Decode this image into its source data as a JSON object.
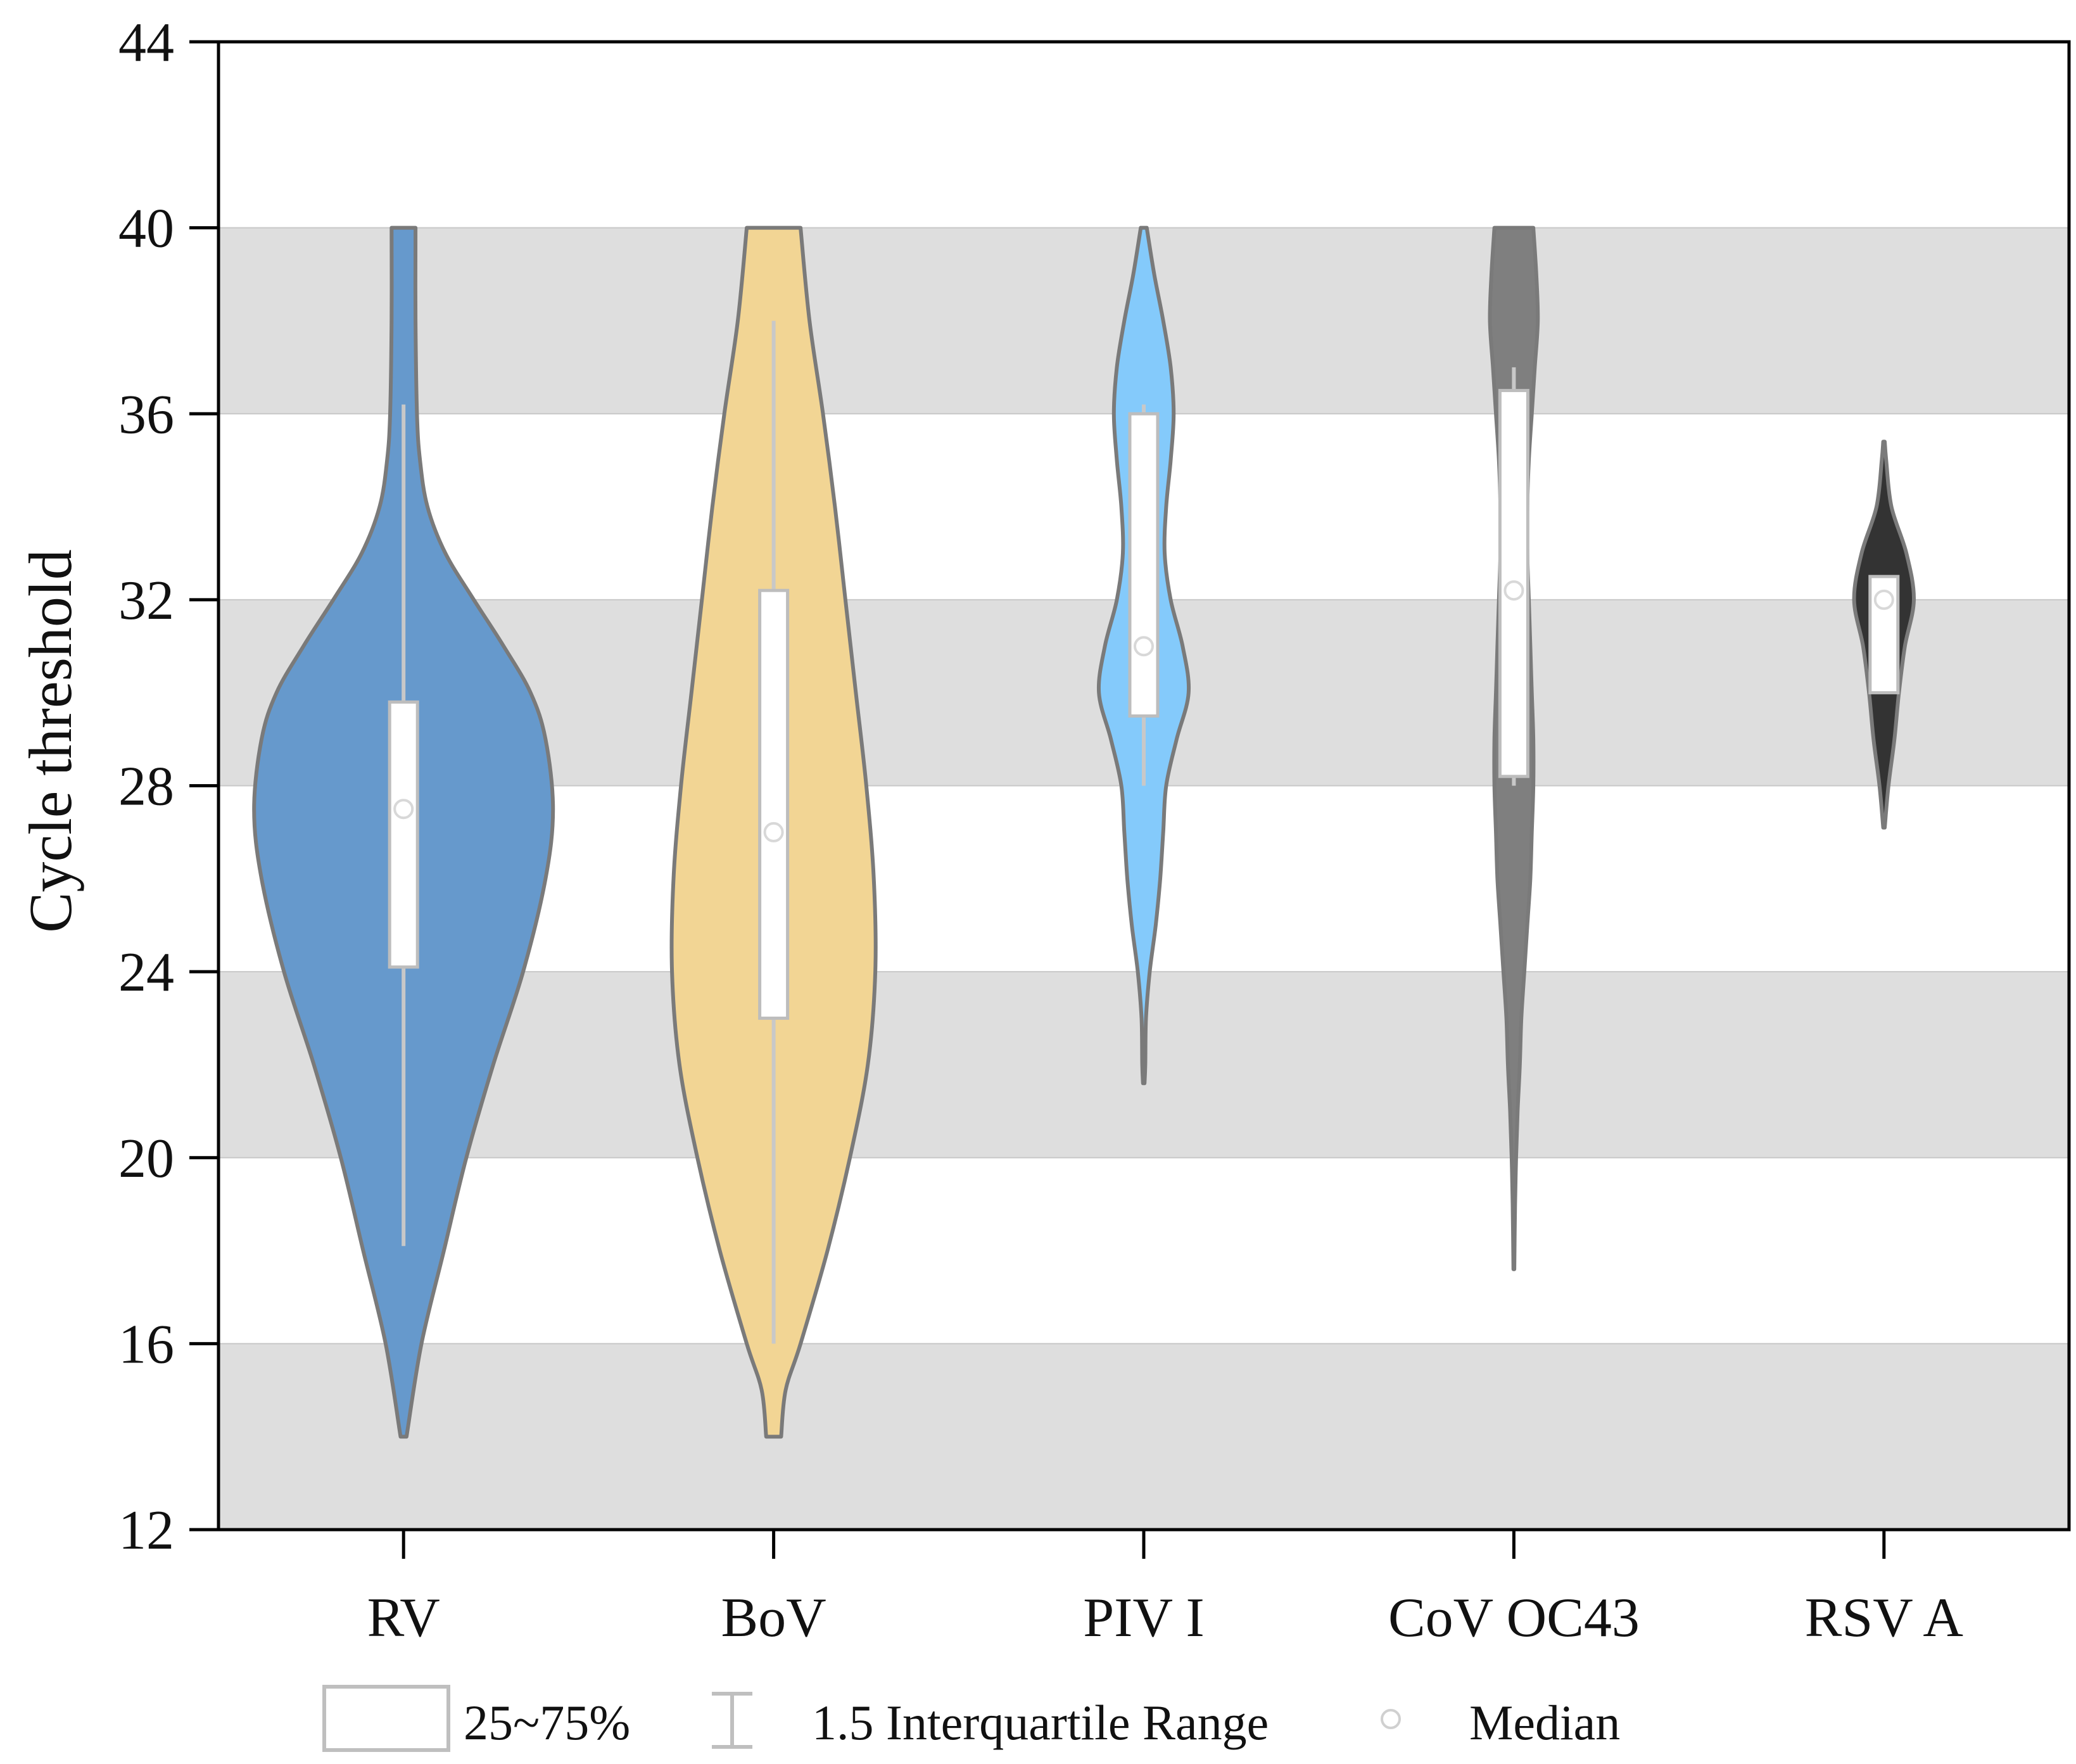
{
  "chart_data": {
    "type": "violin",
    "title": "",
    "xlabel": "",
    "ylabel": "Cycle threshold",
    "ylim": [
      12,
      44
    ],
    "yticks": [
      12,
      16,
      20,
      24,
      28,
      32,
      36,
      40,
      44
    ],
    "background_bands": [
      [
        12,
        16
      ],
      [
        20,
        24
      ],
      [
        28,
        32
      ],
      [
        36,
        40
      ]
    ],
    "categories": [
      "RV",
      "BoV",
      "PIV I",
      "CoV OC43",
      "RSV A"
    ],
    "series": [
      {
        "name": "RV",
        "color": "#6699cc",
        "min": 14,
        "max": 40,
        "q1": 24.1,
        "q3": 29.8,
        "median": 27.5,
        "whisker_low": 18.1,
        "whisker_high": 36.2,
        "density": [
          [
            14,
            0.02
          ],
          [
            16,
            0.12
          ],
          [
            18,
            0.27
          ],
          [
            20,
            0.42
          ],
          [
            22,
            0.6
          ],
          [
            24,
            0.8
          ],
          [
            26,
            0.95
          ],
          [
            27.5,
            1.0
          ],
          [
            29,
            0.95
          ],
          [
            30,
            0.85
          ],
          [
            31,
            0.67
          ],
          [
            32,
            0.47
          ],
          [
            33,
            0.28
          ],
          [
            34,
            0.16
          ],
          [
            35,
            0.11
          ],
          [
            36,
            0.09
          ],
          [
            38,
            0.08
          ],
          [
            40,
            0.08
          ]
        ]
      },
      {
        "name": "BoV",
        "color": "#f2d594",
        "min": 14,
        "max": 40,
        "q1": 23,
        "q3": 32.2,
        "median": 27,
        "whisker_low": 16,
        "whisker_high": 38,
        "density": [
          [
            14,
            0.05
          ],
          [
            15,
            0.08
          ],
          [
            16,
            0.18
          ],
          [
            18,
            0.36
          ],
          [
            20,
            0.51
          ],
          [
            22,
            0.63
          ],
          [
            24,
            0.68
          ],
          [
            26,
            0.67
          ],
          [
            28,
            0.62
          ],
          [
            30,
            0.55
          ],
          [
            32,
            0.48
          ],
          [
            34,
            0.41
          ],
          [
            36,
            0.33
          ],
          [
            38,
            0.24
          ],
          [
            40,
            0.18
          ]
        ]
      },
      {
        "name": "PIV I",
        "color": "#84cafb",
        "min": 21.6,
        "max": 40,
        "q1": 29.5,
        "q3": 36,
        "median": 31,
        "whisker_low": 28,
        "whisker_high": 36.2,
        "density": [
          [
            21.6,
            0.005
          ],
          [
            22,
            0.01
          ],
          [
            23,
            0.015
          ],
          [
            24,
            0.04
          ],
          [
            25,
            0.08
          ],
          [
            26,
            0.11
          ],
          [
            27,
            0.13
          ],
          [
            28,
            0.15
          ],
          [
            29,
            0.22
          ],
          [
            30,
            0.3
          ],
          [
            31,
            0.26
          ],
          [
            32,
            0.18
          ],
          [
            33,
            0.14
          ],
          [
            34,
            0.15
          ],
          [
            35,
            0.18
          ],
          [
            36,
            0.2
          ],
          [
            37,
            0.18
          ],
          [
            38,
            0.13
          ],
          [
            39,
            0.07
          ],
          [
            40,
            0.02
          ]
        ]
      },
      {
        "name": "CoV OC43",
        "color": "#7f7f7f",
        "min": 17.6,
        "max": 40,
        "q1": 28.2,
        "q3": 36.5,
        "median": 32.2,
        "whisker_low": 28,
        "whisker_high": 37,
        "density": [
          [
            17.6,
            0.003
          ],
          [
            19,
            0.008
          ],
          [
            20,
            0.015
          ],
          [
            21,
            0.025
          ],
          [
            22,
            0.04
          ],
          [
            23,
            0.05
          ],
          [
            24,
            0.07
          ],
          [
            25,
            0.09
          ],
          [
            26,
            0.11
          ],
          [
            27,
            0.12
          ],
          [
            28,
            0.13
          ],
          [
            29,
            0.13
          ],
          [
            30,
            0.12
          ],
          [
            31,
            0.11
          ],
          [
            32,
            0.1
          ],
          [
            33,
            0.09
          ],
          [
            34,
            0.09
          ],
          [
            35,
            0.1
          ],
          [
            36,
            0.12
          ],
          [
            37,
            0.14
          ],
          [
            38,
            0.16
          ],
          [
            39,
            0.15
          ],
          [
            40,
            0.13
          ]
        ]
      },
      {
        "name": "RSV A",
        "color": "#333333",
        "min": 27.1,
        "max": 35.4,
        "q1": 30,
        "q3": 32.5,
        "median": 32,
        "whisker_low": 30,
        "whisker_high": 32.5,
        "density": [
          [
            27.1,
            0.005
          ],
          [
            28,
            0.03
          ],
          [
            29,
            0.07
          ],
          [
            30,
            0.1
          ],
          [
            31,
            0.14
          ],
          [
            32,
            0.2
          ],
          [
            33,
            0.15
          ],
          [
            34,
            0.05
          ],
          [
            35,
            0.015
          ],
          [
            35.4,
            0.005
          ]
        ]
      }
    ],
    "legend": {
      "placement": "bottom",
      "entries": [
        "25~75%",
        "1.5 Interquartile Range",
        "Median"
      ]
    }
  }
}
